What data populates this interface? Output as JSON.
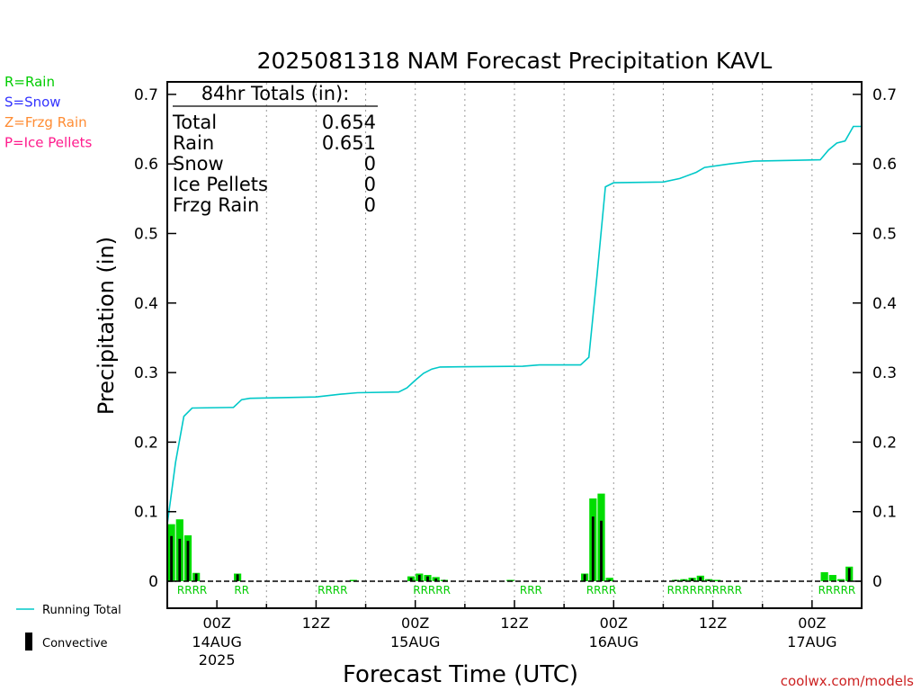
{
  "chart_data": {
    "type": "bar",
    "title": "2025081318 NAM Forecast Precipitation KAVL",
    "xlabel": "Forecast Time (UTC)",
    "ylabel": "Precipitation (in)",
    "ylim": [
      0,
      0.72
    ],
    "y_ticks": [
      "0",
      "0.1",
      "0.2",
      "0.3",
      "0.4",
      "0.5",
      "0.6",
      "0.7"
    ],
    "x_range_hours": [
      -6,
      78
    ],
    "x_ticks": [
      {
        "hour": 0,
        "line1": "00Z",
        "line2": "14AUG",
        "line3": "2025"
      },
      {
        "hour": 12,
        "line1": "12Z",
        "line2": "",
        "line3": ""
      },
      {
        "hour": 24,
        "line1": "00Z",
        "line2": "15AUG",
        "line3": ""
      },
      {
        "hour": 36,
        "line1": "12Z",
        "line2": "",
        "line3": ""
      },
      {
        "hour": 48,
        "line1": "00Z",
        "line2": "16AUG",
        "line3": ""
      },
      {
        "hour": 60,
        "line1": "12Z",
        "line2": "",
        "line3": ""
      },
      {
        "hour": 72,
        "line1": "00Z",
        "line2": "17AUG",
        "line3": ""
      }
    ],
    "legend_types": [
      {
        "text": "R=Rain",
        "color": "#00cc00"
      },
      {
        "text": "S=Snow",
        "color": "#3333ff"
      },
      {
        "text": "Z=Frzg Rain",
        "color": "#ff8c33"
      },
      {
        "text": "P=Ice Pellets",
        "color": "#ff1a8c"
      }
    ],
    "legend_series": [
      {
        "text": "Running Total",
        "color": "#00c8c8"
      },
      {
        "text": "Convective",
        "color": "#000000"
      }
    ],
    "totals": {
      "header": "84hr Totals (in):",
      "rows": [
        {
          "label": "Total",
          "value": "0.654"
        },
        {
          "label": "Rain",
          "value": "0.651"
        },
        {
          "label": "Snow",
          "value": "0"
        },
        {
          "label": "Ice Pellets",
          "value": "0"
        },
        {
          "label": "Frzg Rain",
          "value": "0"
        }
      ]
    },
    "bar_colors": {
      "total": "#00dd00",
      "convective": "#000000"
    },
    "precip_bars": [
      {
        "hour": -5,
        "total": 0.082,
        "conv": 0.065
      },
      {
        "hour": -4,
        "total": 0.089,
        "conv": 0.061
      },
      {
        "hour": -3,
        "total": 0.066,
        "conv": 0.058
      },
      {
        "hour": -2,
        "total": 0.012,
        "conv": 0.011
      },
      {
        "hour": 3,
        "total": 0.011,
        "conv": 0.01
      },
      {
        "hour": 17,
        "total": 0.001,
        "conv": 0.0
      },
      {
        "hour": 24,
        "total": 0.007,
        "conv": 0.005
      },
      {
        "hour": 25,
        "total": 0.011,
        "conv": 0.009
      },
      {
        "hour": 26,
        "total": 0.009,
        "conv": 0.007
      },
      {
        "hour": 27,
        "total": 0.006,
        "conv": 0.004
      },
      {
        "hour": 28,
        "total": 0.002,
        "conv": 0.001
      },
      {
        "hour": 36,
        "total": 0.001,
        "conv": 0.0
      },
      {
        "hour": 45,
        "total": 0.011,
        "conv": 0.01
      },
      {
        "hour": 46,
        "total": 0.119,
        "conv": 0.093
      },
      {
        "hour": 47,
        "total": 0.126,
        "conv": 0.087
      },
      {
        "hour": 48,
        "total": 0.005,
        "conv": 0.002
      },
      {
        "hour": 56,
        "total": 0.002,
        "conv": 0.001
      },
      {
        "hour": 57,
        "total": 0.003,
        "conv": 0.002
      },
      {
        "hour": 58,
        "total": 0.005,
        "conv": 0.004
      },
      {
        "hour": 59,
        "total": 0.008,
        "conv": 0.006
      },
      {
        "hour": 60,
        "total": 0.003,
        "conv": 0.002
      },
      {
        "hour": 61,
        "total": 0.001,
        "conv": 0.0
      },
      {
        "hour": 74,
        "total": 0.013,
        "conv": 0.0
      },
      {
        "hour": 75,
        "total": 0.009,
        "conv": 0.0
      },
      {
        "hour": 76,
        "total": 0.003,
        "conv": 0.0
      },
      {
        "hour": 77,
        "total": 0.021,
        "conv": 0.019
      }
    ],
    "running_total": [
      {
        "hour": -6,
        "value": 0.082
      },
      {
        "hour": -5,
        "value": 0.171
      },
      {
        "hour": -4,
        "value": 0.237
      },
      {
        "hour": -3,
        "value": 0.249
      },
      {
        "hour": 2,
        "value": 0.25
      },
      {
        "hour": 3,
        "value": 0.261
      },
      {
        "hour": 4,
        "value": 0.263
      },
      {
        "hour": 12,
        "value": 0.265
      },
      {
        "hour": 15,
        "value": 0.269
      },
      {
        "hour": 17,
        "value": 0.271
      },
      {
        "hour": 22,
        "value": 0.272
      },
      {
        "hour": 23,
        "value": 0.278
      },
      {
        "hour": 24,
        "value": 0.289
      },
      {
        "hour": 25,
        "value": 0.299
      },
      {
        "hour": 26,
        "value": 0.305
      },
      {
        "hour": 27,
        "value": 0.308
      },
      {
        "hour": 37,
        "value": 0.309
      },
      {
        "hour": 39,
        "value": 0.311
      },
      {
        "hour": 44,
        "value": 0.311
      },
      {
        "hour": 45,
        "value": 0.322
      },
      {
        "hour": 46,
        "value": 0.441
      },
      {
        "hour": 47,
        "value": 0.567
      },
      {
        "hour": 48,
        "value": 0.573
      },
      {
        "hour": 54,
        "value": 0.574
      },
      {
        "hour": 56,
        "value": 0.579
      },
      {
        "hour": 58,
        "value": 0.588
      },
      {
        "hour": 59,
        "value": 0.595
      },
      {
        "hour": 62,
        "value": 0.6
      },
      {
        "hour": 65,
        "value": 0.604
      },
      {
        "hour": 73,
        "value": 0.606
      },
      {
        "hour": 74,
        "value": 0.62
      },
      {
        "hour": 75,
        "value": 0.63
      },
      {
        "hour": 76,
        "value": 0.633
      },
      {
        "hour": 77,
        "value": 0.654
      },
      {
        "hour": 78,
        "value": 0.654
      }
    ],
    "type_labels": [
      {
        "hour": -3,
        "text": "RRRR"
      },
      {
        "hour": 3,
        "text": "RR"
      },
      {
        "hour": 14,
        "text": "RRRR"
      },
      {
        "hour": 26,
        "text": "RRRRR"
      },
      {
        "hour": 38,
        "text": "RRR"
      },
      {
        "hour": 46.5,
        "text": "RRRR"
      },
      {
        "hour": 59,
        "text": "RRRRRRRRRR"
      },
      {
        "hour": 75,
        "text": "RRRRR"
      }
    ],
    "grid": "vertical dotted lines at 6-hour synoptic times"
  },
  "watermark": "coolwx.com/models",
  "colors": {
    "running_total": "#00c8c8",
    "rain": "#00cc00",
    "watermark": "#cc2222"
  }
}
